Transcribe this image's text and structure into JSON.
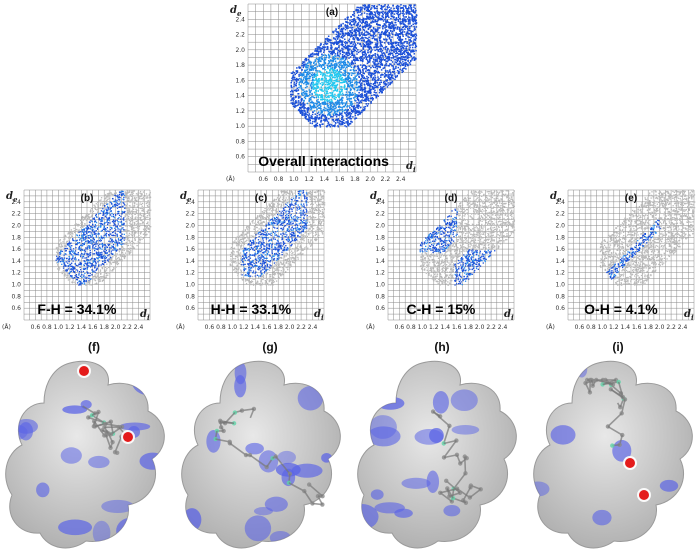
{
  "chart_data": [
    {
      "type": "scatter",
      "id": "a",
      "panel_label": "(a)",
      "title": "Overall interactions",
      "xlabel": "d",
      "xlabel_sub": "i",
      "ylabel": "d",
      "ylabel_sub": "e",
      "unit_label": "(Å)",
      "x_ticks": [
        "0.6",
        "0.8",
        "1.0",
        "1.2",
        "1.4",
        "1.6",
        "1.8",
        "2.0",
        "2.2",
        "2.4"
      ],
      "y_ticks": [
        "0.6",
        "0.8",
        "1.0",
        "1.2",
        "1.4",
        "1.6",
        "1.8",
        "2.0",
        "2.2",
        "2.4"
      ],
      "xlim": [
        0.4,
        2.6
      ],
      "ylim": [
        0.4,
        2.6
      ],
      "grid": true,
      "highlight_region": {
        "x": [
          1.0,
          2.6
        ],
        "y": [
          1.0,
          2.6
        ]
      }
    },
    {
      "type": "scatter",
      "id": "b",
      "panel_label": "(b)",
      "title": "F-H = 34.1%",
      "xlabel": "d",
      "xlabel_sub": "i",
      "ylabel": "d",
      "ylabel_sub": "e",
      "unit_label": "(Å)",
      "x_ticks": [
        "0.6",
        "0.8",
        "1.0",
        "1.2",
        "1.4",
        "1.6",
        "1.8",
        "2.0",
        "2.2",
        "2.4"
      ],
      "y_ticks": [
        "0.6",
        "0.8",
        "1.0",
        "1.2",
        "1.4",
        "1.6",
        "1.8",
        "2.0",
        "2.2",
        "2.4"
      ],
      "xlim": [
        0.4,
        2.6
      ],
      "ylim": [
        0.4,
        2.6
      ],
      "grid": true,
      "contribution_percent": 34.1
    },
    {
      "type": "scatter",
      "id": "c",
      "panel_label": "(c)",
      "title": "H-H = 33.1%",
      "xlabel": "d",
      "xlabel_sub": "i",
      "ylabel": "d",
      "ylabel_sub": "e",
      "unit_label": "(Å)",
      "x_ticks": [
        "0.6",
        "0.8",
        "1.0",
        "1.2",
        "1.4",
        "1.6",
        "1.8",
        "2.0",
        "2.2",
        "2.4"
      ],
      "y_ticks": [
        "0.6",
        "0.8",
        "1.0",
        "1.2",
        "1.4",
        "1.6",
        "1.8",
        "2.0",
        "2.2",
        "2.4"
      ],
      "xlim": [
        0.4,
        2.6
      ],
      "ylim": [
        0.4,
        2.6
      ],
      "grid": true,
      "contribution_percent": 33.1
    },
    {
      "type": "scatter",
      "id": "d",
      "panel_label": "(d)",
      "title": "C-H = 15%",
      "xlabel": "d",
      "xlabel_sub": "i",
      "ylabel": "d",
      "ylabel_sub": "e",
      "unit_label": "(Å)",
      "x_ticks": [
        "0.6",
        "0.8",
        "1.0",
        "1.2",
        "1.4",
        "1.6",
        "1.8",
        "2.0",
        "2.2",
        "2.4"
      ],
      "y_ticks": [
        "0.6",
        "0.8",
        "1.0",
        "1.2",
        "1.4",
        "1.6",
        "1.8",
        "2.0",
        "2.2",
        "2.4"
      ],
      "xlim": [
        0.4,
        2.6
      ],
      "ylim": [
        0.4,
        2.6
      ],
      "grid": true,
      "contribution_percent": 15
    },
    {
      "type": "scatter",
      "id": "e",
      "panel_label": "(e)",
      "title": "O-H = 4.1%",
      "xlabel": "d",
      "xlabel_sub": "i",
      "ylabel": "d",
      "ylabel_sub": "e",
      "unit_label": "(Å)",
      "x_ticks": [
        "0.6",
        "0.8",
        "1.0",
        "1.2",
        "1.4",
        "1.6",
        "1.8",
        "2.0",
        "2.2",
        "2.4"
      ],
      "y_ticks": [
        "0.6",
        "0.8",
        "1.0",
        "1.2",
        "1.4",
        "1.6",
        "1.8",
        "2.0",
        "2.2",
        "2.4"
      ],
      "xlim": [
        0.4,
        2.6
      ],
      "ylim": [
        0.4,
        2.6
      ],
      "grid": true,
      "contribution_percent": 4.1
    }
  ],
  "surfaces": [
    {
      "label": "(f)"
    },
    {
      "label": "(g)"
    },
    {
      "label": "(h)"
    },
    {
      "label": "(i)"
    }
  ],
  "colors": {
    "fingerprint_blue": "#1a4fd8",
    "fingerprint_cyan": "#22c8f0",
    "background_gray": "#b9b9b9",
    "surface_gray": "#c9c9c9",
    "contact_blue": "#5a63e6",
    "contact_red": "#e41b1b",
    "grid": "#8a8a8a"
  }
}
